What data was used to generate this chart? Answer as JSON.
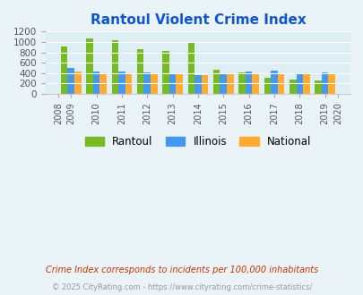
{
  "title": "Rantoul Violent Crime Index",
  "data_years": [
    2009,
    2010,
    2011,
    2012,
    2013,
    2014,
    2015,
    2016,
    2017,
    2018,
    2019
  ],
  "all_year_labels": [
    "2008",
    "2009",
    "2010",
    "2011",
    "2012",
    "2013",
    "2014",
    "2015",
    "2016",
    "2017",
    "2018",
    "2019",
    "2020"
  ],
  "rantoul": [
    920,
    1070,
    1030,
    860,
    820,
    990,
    460,
    410,
    315,
    275,
    255
  ],
  "illinois": [
    495,
    430,
    430,
    415,
    375,
    370,
    395,
    430,
    440,
    400,
    410
  ],
  "national": [
    435,
    405,
    390,
    390,
    380,
    365,
    373,
    395,
    395,
    383,
    380
  ],
  "rantoul_color": "#77bb22",
  "illinois_color": "#4499ee",
  "national_color": "#ffaa33",
  "background_color": "#eaf4f8",
  "plot_bg_color": "#ddeef5",
  "title_color": "#1155cc",
  "ylim_max": 1200,
  "yticks": [
    0,
    200,
    400,
    600,
    800,
    1000,
    1200
  ],
  "footnote1": "Crime Index corresponds to incidents per 100,000 inhabitants",
  "footnote2": "© 2025 CityRating.com - https://www.cityrating.com/crime-statistics/",
  "footnote1_color": "#cc3300",
  "footnote2_color": "#999999",
  "legend_labels": [
    "Rantoul",
    "Illinois",
    "National"
  ]
}
